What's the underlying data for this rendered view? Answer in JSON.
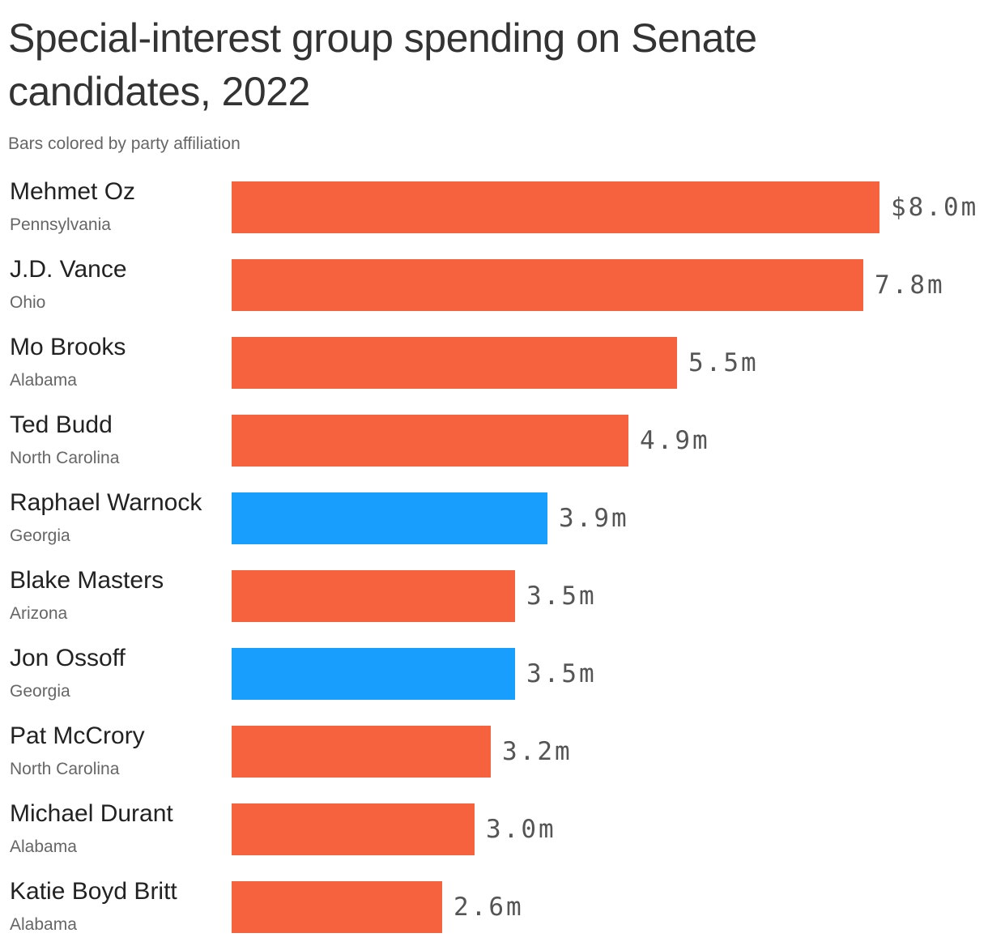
{
  "chart_data": {
    "type": "bar",
    "title": "Special-interest group spending on Senate candidates, 2022",
    "subtitle": "Bars colored by party affiliation",
    "categories": [
      "Mehmet Oz",
      "J.D. Vance",
      "Mo Brooks",
      "Ted Budd",
      "Raphael Warnock",
      "Blake Masters",
      "Jon Ossoff",
      "Pat McCrory",
      "Michael Durant",
      "Katie Boyd Britt"
    ],
    "states": [
      "Pennsylvania",
      "Ohio",
      "Alabama",
      "North Carolina",
      "Georgia",
      "Arizona",
      "Georgia",
      "North Carolina",
      "Alabama",
      "Alabama"
    ],
    "values": [
      8.0,
      7.8,
      5.5,
      4.9,
      3.9,
      3.5,
      3.5,
      3.2,
      3.0,
      2.6
    ],
    "value_labels": [
      "$8.0m",
      "7.8m",
      "5.5m",
      "4.9m",
      "3.9m",
      "3.5m",
      "3.5m",
      "3.2m",
      "3.0m",
      "2.6m"
    ],
    "party": [
      "republican",
      "republican",
      "republican",
      "republican",
      "democrat",
      "republican",
      "democrat",
      "republican",
      "republican",
      "republican"
    ],
    "xlim": [
      0,
      8.0
    ],
    "grid": false
  },
  "colors": {
    "republican": "#f6623d",
    "democrat": "#189ffd"
  }
}
